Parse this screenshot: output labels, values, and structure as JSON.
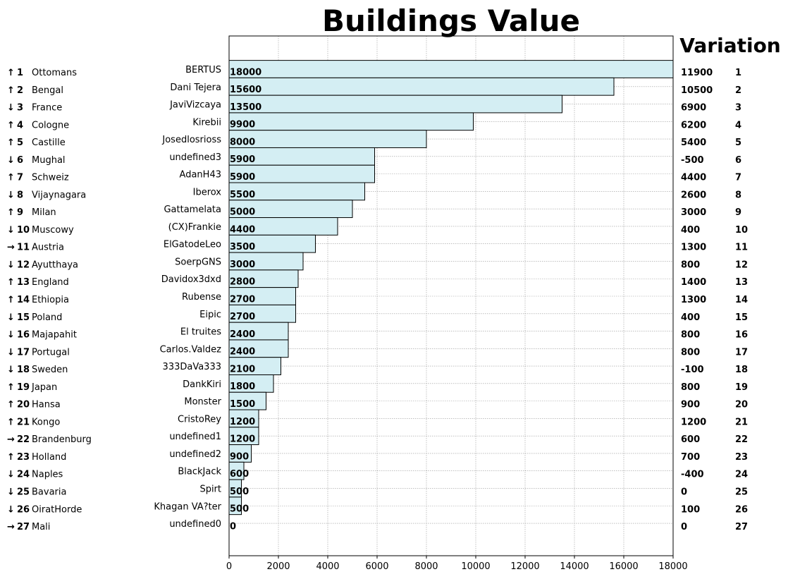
{
  "chart_data": {
    "type": "bar",
    "orientation": "horizontal",
    "title": "Buildings Value",
    "variation_title": "Variation",
    "xlim": [
      0,
      18000
    ],
    "x_ticks": [
      0,
      2000,
      4000,
      6000,
      8000,
      10000,
      12000,
      14000,
      16000,
      18000
    ],
    "grid": true,
    "bar_color": "#d4eef3",
    "colors": {
      "up": "#008000",
      "down": "#ff0000",
      "flat": "#6b5b00",
      "variation_pos": "#008000",
      "variation_neg": "#ff0000"
    },
    "rows": [
      {
        "trend": "↑",
        "trend_dir": "up",
        "rank": "1",
        "country": "Ottomans",
        "player": "BERTUS",
        "value": 18000,
        "value_label": "18000",
        "variation": "11900",
        "variation_dir": "pos",
        "var_rank": "1"
      },
      {
        "trend": "↑",
        "trend_dir": "up",
        "rank": "2",
        "country": "Bengal",
        "player": "Dani Tejera",
        "value": 15600,
        "value_label": "15600",
        "variation": "10500",
        "variation_dir": "pos",
        "var_rank": "2"
      },
      {
        "trend": "↓",
        "trend_dir": "down",
        "rank": "3",
        "country": "France",
        "player": "JaviVizcaya",
        "value": 13500,
        "value_label": "13500",
        "variation": "6900",
        "variation_dir": "pos",
        "var_rank": "3"
      },
      {
        "trend": "↑",
        "trend_dir": "up",
        "rank": "4",
        "country": "Cologne",
        "player": "Kirebii",
        "value": 9900,
        "value_label": "9900",
        "variation": "6200",
        "variation_dir": "pos",
        "var_rank": "4"
      },
      {
        "trend": "↑",
        "trend_dir": "up",
        "rank": "5",
        "country": "Castille",
        "player": "Josedlosrioss",
        "value": 8000,
        "value_label": "8000",
        "variation": "5400",
        "variation_dir": "pos",
        "var_rank": "5"
      },
      {
        "trend": "↓",
        "trend_dir": "down",
        "rank": "6",
        "country": "Mughal",
        "player": "undefined3",
        "value": 5900,
        "value_label": "5900",
        "variation": "-500",
        "variation_dir": "neg",
        "var_rank": "6"
      },
      {
        "trend": "↑",
        "trend_dir": "up",
        "rank": "7",
        "country": "Schweiz",
        "player": "AdanH43",
        "value": 5900,
        "value_label": "5900",
        "variation": "4400",
        "variation_dir": "pos",
        "var_rank": "7"
      },
      {
        "trend": "↓",
        "trend_dir": "down",
        "rank": "8",
        "country": "Vijaynagara",
        "player": "Iberox",
        "value": 5500,
        "value_label": "5500",
        "variation": "2600",
        "variation_dir": "pos",
        "var_rank": "8"
      },
      {
        "trend": "↑",
        "trend_dir": "up",
        "rank": "9",
        "country": "Milan",
        "player": "Gattamelata",
        "value": 5000,
        "value_label": "5000",
        "variation": "3000",
        "variation_dir": "pos",
        "var_rank": "9"
      },
      {
        "trend": "↓",
        "trend_dir": "down",
        "rank": "10",
        "country": "Muscowy",
        "player": "(CX)Frankie",
        "value": 4400,
        "value_label": "4400",
        "variation": "400",
        "variation_dir": "pos",
        "var_rank": "10"
      },
      {
        "trend": "→",
        "trend_dir": "flat",
        "rank": "11",
        "country": "Austria",
        "player": "ElGatodeLeo",
        "value": 3500,
        "value_label": "3500",
        "variation": "1300",
        "variation_dir": "pos",
        "var_rank": "11"
      },
      {
        "trend": "↓",
        "trend_dir": "down",
        "rank": "12",
        "country": "Ayutthaya",
        "player": "SoerpGNS",
        "value": 3000,
        "value_label": "3000",
        "variation": "800",
        "variation_dir": "pos",
        "var_rank": "12"
      },
      {
        "trend": "↑",
        "trend_dir": "up",
        "rank": "13",
        "country": "England",
        "player": "Davidox3dxd",
        "value": 2800,
        "value_label": "2800",
        "variation": "1400",
        "variation_dir": "pos",
        "var_rank": "13"
      },
      {
        "trend": "↑",
        "trend_dir": "up",
        "rank": "14",
        "country": "Ethiopia",
        "player": "Rubense",
        "value": 2700,
        "value_label": "2700",
        "variation": "1300",
        "variation_dir": "pos",
        "var_rank": "14"
      },
      {
        "trend": "↓",
        "trend_dir": "down",
        "rank": "15",
        "country": "Poland",
        "player": "Eipic",
        "value": 2700,
        "value_label": "2700",
        "variation": "400",
        "variation_dir": "pos",
        "var_rank": "15"
      },
      {
        "trend": "↓",
        "trend_dir": "down",
        "rank": "16",
        "country": "Majapahit",
        "player": "El truites",
        "value": 2400,
        "value_label": "2400",
        "variation": "800",
        "variation_dir": "pos",
        "var_rank": "16"
      },
      {
        "trend": "↓",
        "trend_dir": "down",
        "rank": "17",
        "country": "Portugal",
        "player": "Carlos.Valdez",
        "value": 2400,
        "value_label": "2400",
        "variation": "800",
        "variation_dir": "pos",
        "var_rank": "17"
      },
      {
        "trend": "↓",
        "trend_dir": "down",
        "rank": "18",
        "country": "Sweden",
        "player": "333DaVa333",
        "value": 2100,
        "value_label": "2100",
        "variation": "-100",
        "variation_dir": "neg",
        "var_rank": "18"
      },
      {
        "trend": "↑",
        "trend_dir": "up",
        "rank": "19",
        "country": "Japan",
        "player": "DankKiri",
        "value": 1800,
        "value_label": "1800",
        "variation": "800",
        "variation_dir": "pos",
        "var_rank": "19"
      },
      {
        "trend": "↑",
        "trend_dir": "up",
        "rank": "20",
        "country": "Hansa",
        "player": "Monster",
        "value": 1500,
        "value_label": "1500",
        "variation": "900",
        "variation_dir": "pos",
        "var_rank": "20"
      },
      {
        "trend": "↑",
        "trend_dir": "up",
        "rank": "21",
        "country": "Kongo",
        "player": "CristoRey",
        "value": 1200,
        "value_label": "1200",
        "variation": "1200",
        "variation_dir": "pos",
        "var_rank": "21"
      },
      {
        "trend": "→",
        "trend_dir": "flat",
        "rank": "22",
        "country": "Brandenburg",
        "player": "undefined1",
        "value": 1200,
        "value_label": "1200",
        "variation": "600",
        "variation_dir": "pos",
        "var_rank": "22"
      },
      {
        "trend": "↑",
        "trend_dir": "up",
        "rank": "23",
        "country": "Holland",
        "player": "undefined2",
        "value": 900,
        "value_label": "900",
        "variation": "700",
        "variation_dir": "pos",
        "var_rank": "23"
      },
      {
        "trend": "↓",
        "trend_dir": "down",
        "rank": "24",
        "country": "Naples",
        "player": "BlackJack",
        "value": 600,
        "value_label": "600",
        "variation": "-400",
        "variation_dir": "neg",
        "var_rank": "24"
      },
      {
        "trend": "↓",
        "trend_dir": "down",
        "rank": "25",
        "country": "Bavaria",
        "player": "Spirt",
        "value": 500,
        "value_label": "500",
        "variation": "0",
        "variation_dir": "neg",
        "var_rank": "25"
      },
      {
        "trend": "↓",
        "trend_dir": "down",
        "rank": "26",
        "country": "OiratHorde",
        "player": "Khagan VA?ter",
        "value": 500,
        "value_label": "500",
        "variation": "100",
        "variation_dir": "pos",
        "var_rank": "26"
      },
      {
        "trend": "→",
        "trend_dir": "flat",
        "rank": "27",
        "country": "Mali",
        "player": "undefined0",
        "value": 0,
        "value_label": "0",
        "variation": "0",
        "variation_dir": "neg",
        "var_rank": "27"
      }
    ]
  }
}
